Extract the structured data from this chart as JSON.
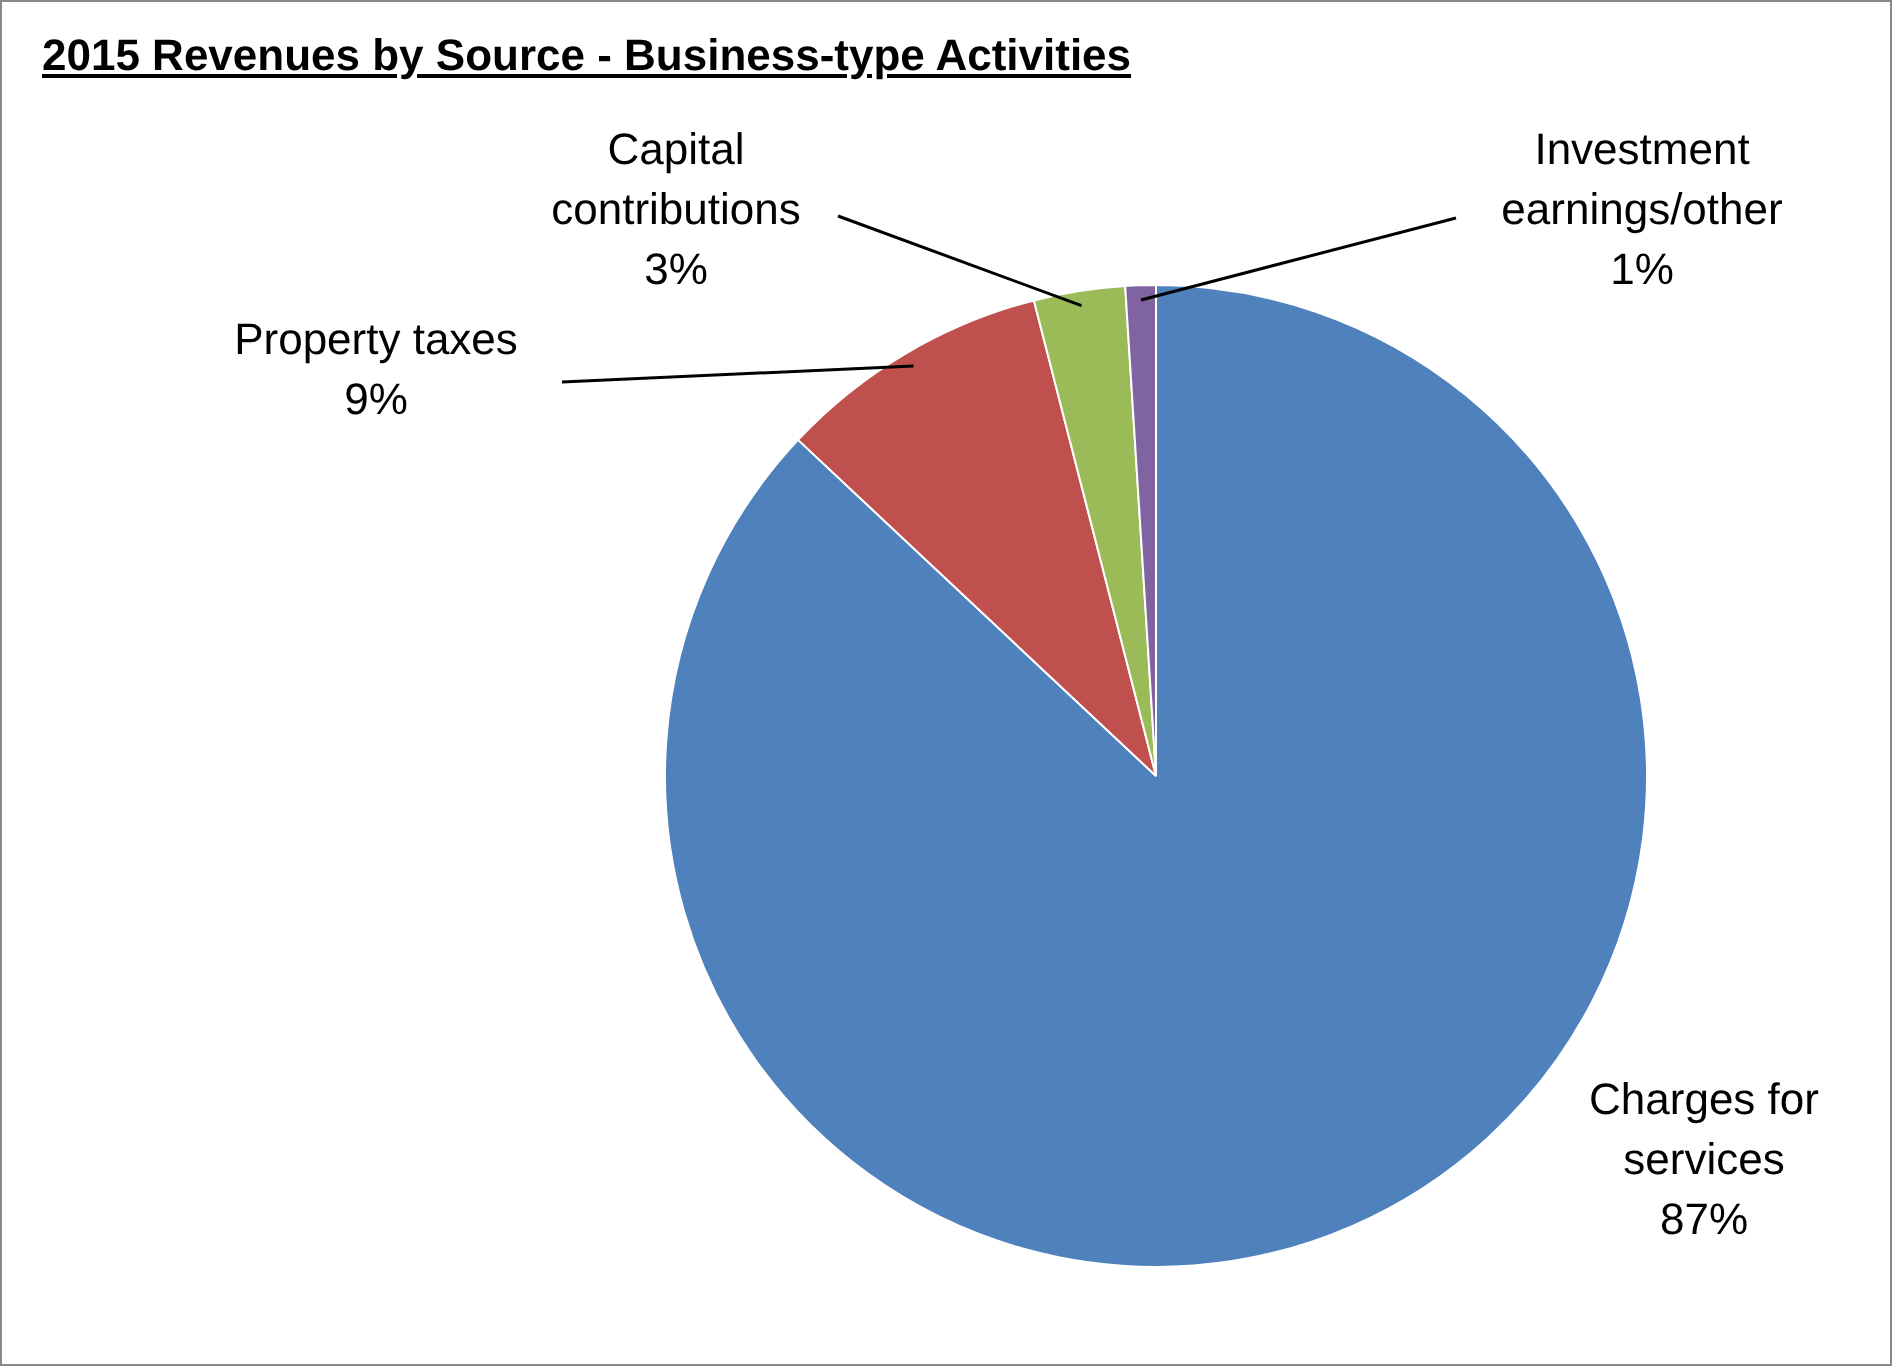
{
  "chart_data": {
    "type": "pie",
    "title": "2015 Revenues by Source - Business-type Activities",
    "categories": [
      "Charges for services",
      "Property taxes",
      "Capital contributions",
      "Investment earnings/other"
    ],
    "values": [
      87,
      9,
      3,
      1
    ],
    "colors": [
      "#4f81bd",
      "#c0504d",
      "#9bbb59",
      "#8064a2"
    ],
    "value_labels": [
      "87%",
      "9%",
      "3%",
      "1%"
    ]
  }
}
